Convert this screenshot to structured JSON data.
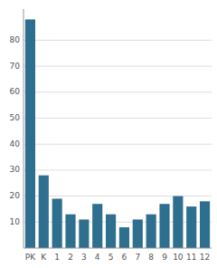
{
  "chart_data": {
    "type": "bar",
    "categories": [
      "PK",
      "K",
      "1",
      "2",
      "3",
      "4",
      "5",
      "6",
      "7",
      "8",
      "9",
      "10",
      "11",
      "12"
    ],
    "values": [
      88,
      28,
      19,
      13,
      11,
      17,
      13,
      8,
      11,
      13,
      17,
      20,
      16,
      18
    ],
    "color": "#2e6e8e",
    "ylim": [
      0,
      92
    ],
    "yticks": [
      10,
      20,
      30,
      40,
      50,
      60,
      70,
      80
    ],
    "grid": true
  }
}
